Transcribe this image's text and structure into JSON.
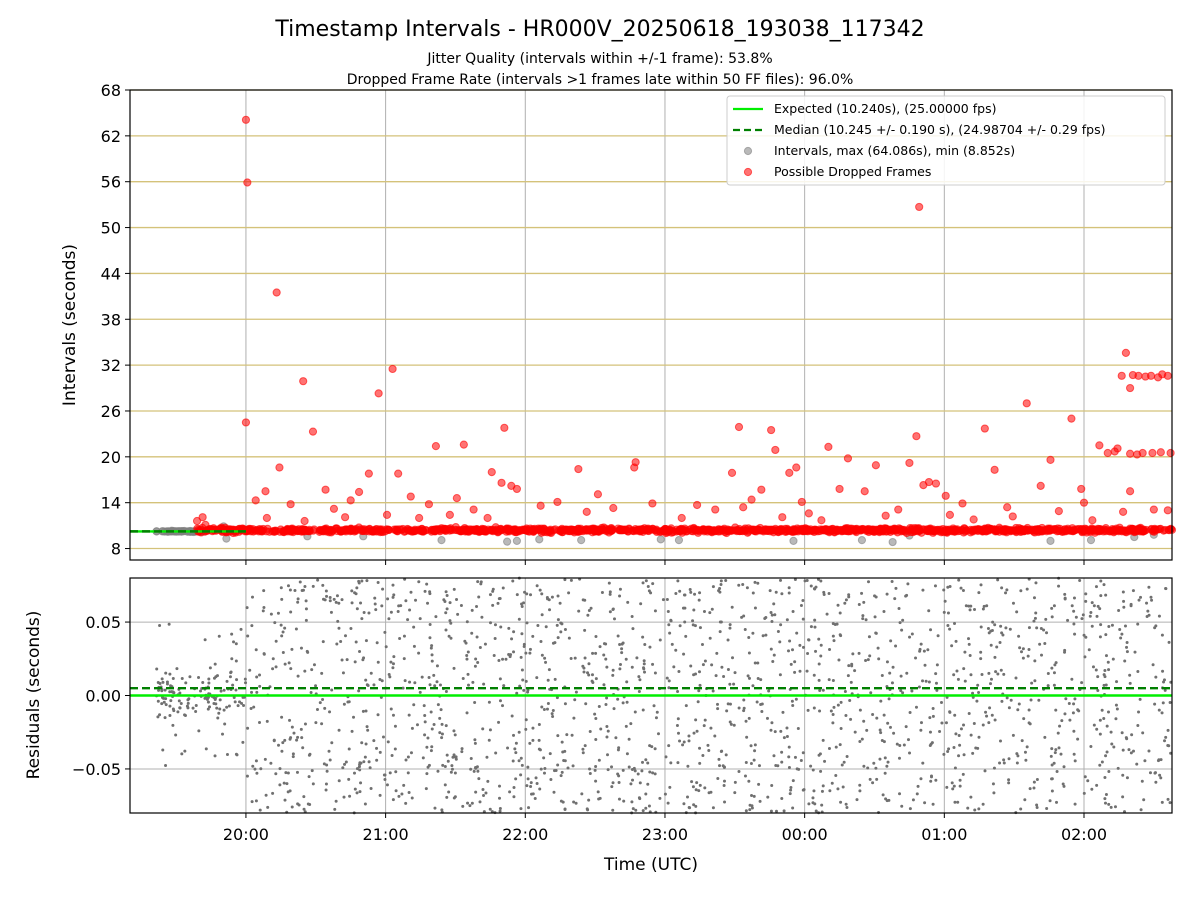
{
  "chart_data": {
    "type": "scatter",
    "title": "Timestamp Intervals - HR000V_20250618_193038_117342",
    "subtitles": [
      "Jitter Quality (intervals within +/-1 frame): 53.8%",
      "Dropped Frame Rate (intervals >1 frames late within 50 FF files): 96.0%"
    ],
    "xlabel": "Time (UTC)",
    "x_tick_labels": [
      "20:00",
      "21:00",
      "22:00",
      "23:00",
      "00:00",
      "01:00",
      "02:00"
    ],
    "x_axis_units": "hours since 19:00 UTC on 2025-06-18",
    "xlim": [
      0.17,
      7.63
    ],
    "x_ticks": [
      1,
      2,
      3,
      4,
      5,
      6,
      7
    ],
    "panels": [
      {
        "name": "intervals",
        "ylabel": "Intervals (seconds)",
        "ylim": [
          6.5,
          68
        ],
        "y_ticks": [
          8,
          14,
          20,
          26,
          32,
          38,
          44,
          50,
          56,
          62,
          68
        ],
        "y_tick_labels": [
          "8",
          "14",
          "20",
          "26",
          "32",
          "38",
          "44",
          "50",
          "56",
          "62",
          "68"
        ],
        "grid": true,
        "legend_position": "top-right",
        "legend": [
          {
            "label": "Expected (10.240s), (25.00000 fps)",
            "marker": "solid-line",
            "color": "#00ee00"
          },
          {
            "label": "Median (10.245 +/- 0.190 s), (24.98704 +/- 0.29 fps)",
            "marker": "dashed-line",
            "color": "#008000"
          },
          {
            "label": "Intervals, max (64.086s), min (8.852s)",
            "marker": "dot",
            "color": "#808080"
          },
          {
            "label": "Possible Dropped Frames",
            "marker": "dot",
            "color": "#ff0000"
          }
        ],
        "expected_value": 10.24,
        "median_value": 10.245,
        "series": [
          {
            "name": "Possible Dropped Frames",
            "color": "#ff0000",
            "points": [
              [
                1.0,
                64.1
              ],
              [
                1.01,
                55.9
              ],
              [
                1.0,
                24.5
              ],
              [
                1.22,
                41.5
              ],
              [
                1.41,
                29.9
              ],
              [
                1.48,
                23.3
              ],
              [
                1.95,
                28.3
              ],
              [
                2.05,
                31.5
              ],
              [
                1.24,
                18.6
              ],
              [
                1.14,
                15.5
              ],
              [
                1.57,
                15.7
              ],
              [
                1.81,
                15.4
              ],
              [
                1.88,
                17.8
              ],
              [
                2.09,
                17.8
              ],
              [
                2.18,
                14.8
              ],
              [
                2.36,
                21.4
              ],
              [
                2.51,
                14.6
              ],
              [
                2.56,
                21.6
              ],
              [
                2.85,
                23.8
              ],
              [
                2.76,
                18.0
              ],
              [
                2.83,
                16.6
              ],
              [
                2.9,
                16.2
              ],
              [
                2.94,
                15.8
              ],
              [
                3.23,
                14.1
              ],
              [
                3.38,
                18.4
              ],
              [
                3.52,
                15.1
              ],
              [
                3.78,
                18.6
              ],
              [
                3.79,
                19.3
              ],
              [
                3.91,
                13.9
              ],
              [
                4.23,
                13.7
              ],
              [
                4.36,
                13.1
              ],
              [
                4.48,
                17.9
              ],
              [
                4.53,
                23.9
              ],
              [
                4.62,
                14.4
              ],
              [
                4.69,
                15.7
              ],
              [
                4.76,
                23.5
              ],
              [
                4.79,
                20.9
              ],
              [
                4.89,
                17.9
              ],
              [
                4.94,
                18.6
              ],
              [
                4.98,
                14.1
              ],
              [
                5.17,
                21.3
              ],
              [
                5.25,
                15.8
              ],
              [
                5.31,
                19.8
              ],
              [
                5.43,
                15.5
              ],
              [
                5.51,
                18.9
              ],
              [
                5.75,
                19.2
              ],
              [
                5.8,
                22.7
              ],
              [
                5.82,
                52.7
              ],
              [
                5.85,
                16.3
              ],
              [
                5.89,
                16.7
              ],
              [
                5.94,
                16.5
              ],
              [
                6.01,
                14.9
              ],
              [
                6.13,
                13.9
              ],
              [
                6.29,
                23.7
              ],
              [
                6.36,
                18.3
              ],
              [
                6.45,
                13.4
              ],
              [
                6.59,
                27.0
              ],
              [
                6.69,
                16.2
              ],
              [
                6.76,
                19.6
              ],
              [
                6.91,
                25.0
              ],
              [
                6.98,
                15.8
              ],
              [
                7.0,
                14.0
              ],
              [
                7.11,
                21.5
              ],
              [
                7.17,
                20.5
              ],
              [
                7.22,
                20.7
              ],
              [
                7.24,
                21.1
              ],
              [
                7.27,
                30.6
              ],
              [
                7.3,
                33.6
              ],
              [
                7.33,
                29.0
              ],
              [
                7.35,
                30.7
              ],
              [
                7.39,
                30.6
              ],
              [
                7.44,
                30.5
              ],
              [
                7.48,
                30.6
              ],
              [
                7.53,
                30.4
              ],
              [
                7.56,
                30.8
              ],
              [
                7.6,
                30.6
              ],
              [
                7.33,
                20.4
              ],
              [
                7.38,
                20.3
              ],
              [
                7.42,
                20.5
              ],
              [
                7.49,
                20.5
              ],
              [
                7.55,
                20.6
              ],
              [
                7.62,
                20.5
              ],
              [
                7.33,
                15.5
              ],
              [
                7.28,
                12.8
              ],
              [
                7.5,
                13.1
              ],
              [
                7.6,
                13.0
              ],
              [
                1.07,
                14.3
              ],
              [
                1.15,
                12.0
              ],
              [
                1.32,
                13.8
              ],
              [
                1.42,
                11.6
              ],
              [
                1.63,
                13.2
              ],
              [
                1.71,
                12.1
              ],
              [
                1.75,
                14.3
              ],
              [
                2.01,
                12.4
              ],
              [
                2.24,
                12.0
              ],
              [
                2.31,
                13.8
              ],
              [
                2.46,
                12.4
              ],
              [
                2.63,
                13.1
              ],
              [
                2.73,
                12.0
              ],
              [
                3.11,
                13.6
              ],
              [
                3.44,
                12.8
              ],
              [
                3.63,
                13.3
              ],
              [
                4.12,
                12.0
              ],
              [
                4.56,
                13.4
              ],
              [
                4.84,
                12.1
              ],
              [
                5.03,
                12.6
              ],
              [
                5.12,
                11.7
              ],
              [
                5.58,
                12.3
              ],
              [
                5.67,
                13.1
              ],
              [
                6.04,
                12.4
              ],
              [
                6.21,
                11.8
              ],
              [
                6.49,
                12.2
              ],
              [
                6.82,
                12.9
              ],
              [
                7.06,
                11.7
              ],
              [
                0.65,
                11.6
              ],
              [
                0.69,
                12.1
              ],
              [
                0.71,
                11.1
              ]
            ]
          },
          {
            "name": "Intervals",
            "color": "#808080",
            "points": [
              [
                0.4,
                10.25
              ],
              [
                0.44,
                10.2
              ],
              [
                0.48,
                10.27
              ],
              [
                0.52,
                10.22
              ],
              [
                0.56,
                10.3
              ],
              [
                0.6,
                10.18
              ],
              [
                0.63,
                10.26
              ],
              [
                0.67,
                10.23
              ],
              [
                0.84,
                10.9
              ],
              [
                0.86,
                9.3
              ],
              [
                0.97,
                10.5
              ],
              [
                1.44,
                9.6
              ],
              [
                1.84,
                9.6
              ],
              [
                2.4,
                9.1
              ],
              [
                2.87,
                8.9
              ],
              [
                2.94,
                9.0
              ],
              [
                3.1,
                9.2
              ],
              [
                3.4,
                9.1
              ],
              [
                3.97,
                9.2
              ],
              [
                4.1,
                9.1
              ],
              [
                4.92,
                9.0
              ],
              [
                5.41,
                9.1
              ],
              [
                5.63,
                8.85
              ],
              [
                5.75,
                9.7
              ],
              [
                6.76,
                9.0
              ],
              [
                7.05,
                9.1
              ],
              [
                7.36,
                9.5
              ],
              [
                7.5,
                9.8
              ]
            ]
          }
        ],
        "dense_band": {
          "color": "#ff0000",
          "x_range": [
            0.65,
            7.63
          ],
          "y_center": 10.24,
          "y_spread": 0.45
        }
      },
      {
        "name": "residuals",
        "ylabel": "Residuals (seconds)",
        "ylim": [
          -0.08,
          0.08
        ],
        "y_ticks": [
          -0.05,
          0.0,
          0.05
        ],
        "y_tick_labels": [
          "−0.05",
          "0.00",
          "0.05"
        ],
        "grid": true,
        "expected_value": 0.0,
        "median_value": 0.005,
        "scatter": {
          "color": "#808080",
          "x_range": [
            0.36,
            7.63
          ],
          "y_range": [
            -0.08,
            0.08
          ],
          "count": 1900,
          "early_cluster": {
            "x_range": [
              0.36,
              1.0
            ],
            "y_spread": 0.02
          }
        }
      }
    ]
  }
}
